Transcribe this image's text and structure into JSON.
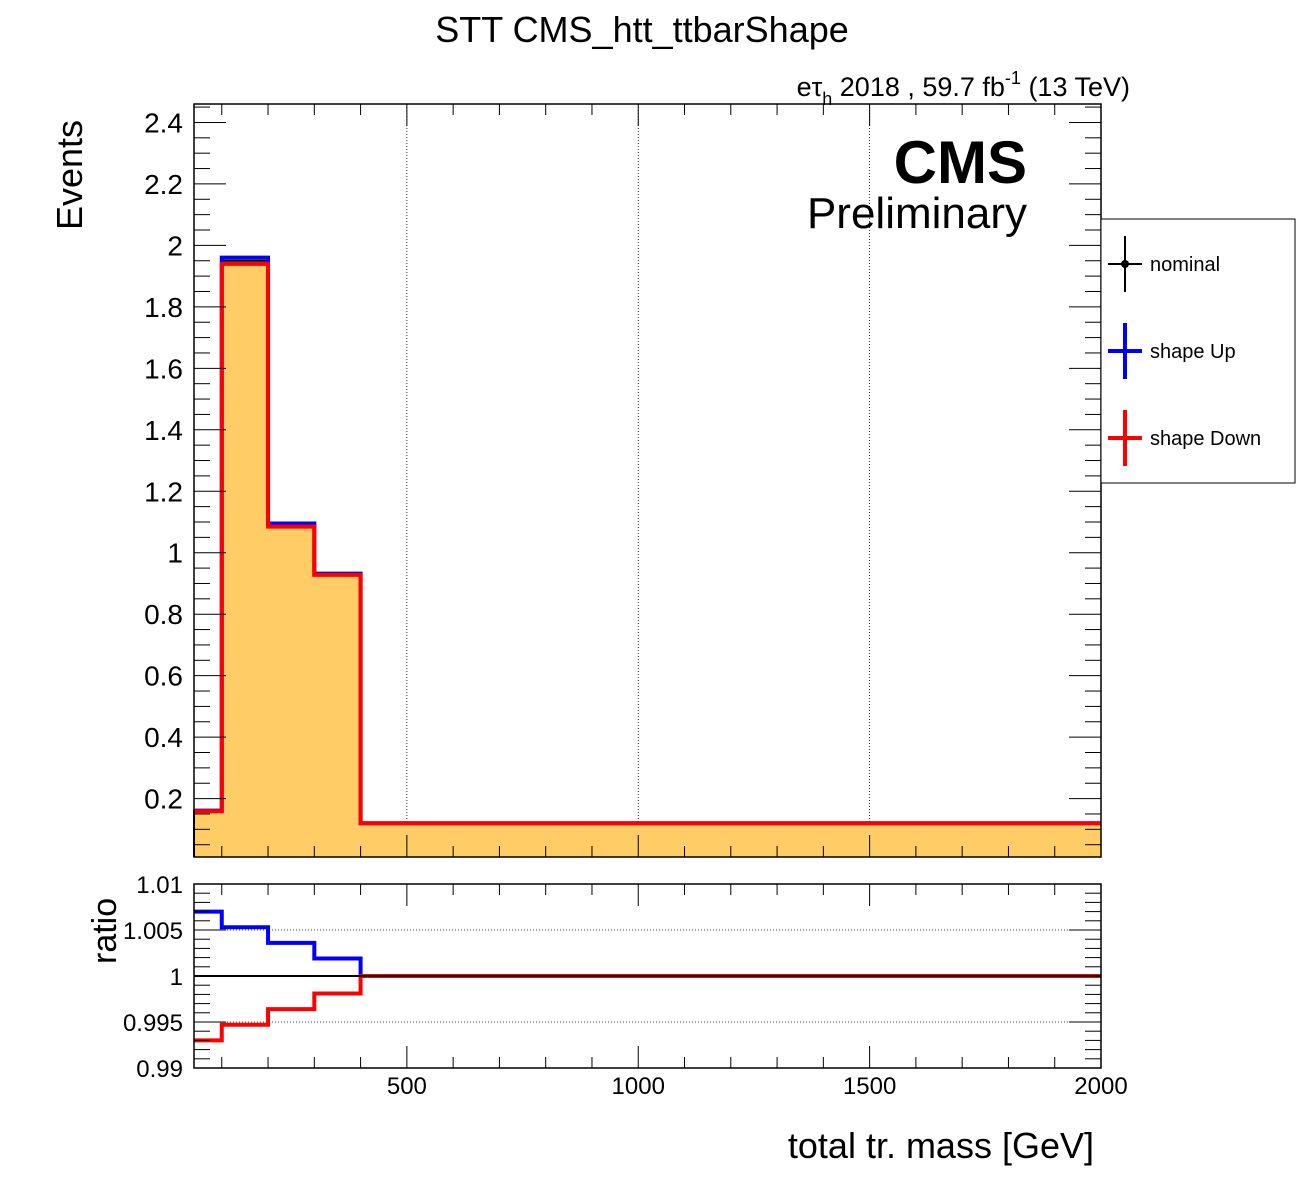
{
  "chart_data": [
    {
      "type": "line",
      "step": true,
      "title": "STT CMS_htt_ttbarShape",
      "subtitle": {
        "prefix": "eτ",
        "subscript": "h",
        "text": " 2018 , 59.7 fb",
        "superscript": "-1",
        "suffix": " (13 TeV)"
      },
      "logo": {
        "main": "CMS",
        "sub": "Preliminary"
      },
      "ylabel": "Events",
      "xlabel": "total tr. mass [GeV]",
      "xlim": [
        40,
        2000
      ],
      "ylim": [
        0.01,
        2.46
      ],
      "yticks": [
        "0.2",
        "0.4",
        "0.6",
        "0.8",
        "1",
        "1.2",
        "1.4",
        "1.6",
        "1.8",
        "2",
        "2.2",
        "2.4"
      ],
      "xticks": [
        "500",
        "1000",
        "1500",
        "2000"
      ],
      "grid": {
        "x": true,
        "y": false
      },
      "bin_edges": [
        40,
        100,
        200,
        300,
        400,
        2000
      ],
      "fill_color": "#ffcc66",
      "series": [
        {
          "name": "nominal",
          "color": "#000000",
          "values": [
            0.16,
            1.95,
            1.09,
            0.93,
            0.12
          ]
        },
        {
          "name": "shape Up",
          "color": "#0000ff",
          "values": [
            0.161,
            1.96,
            1.095,
            0.932,
            0.12
          ]
        },
        {
          "name": "shape Down",
          "color": "#ff0000",
          "values": [
            0.159,
            1.94,
            1.085,
            0.928,
            0.12
          ]
        }
      ],
      "legend": {
        "position": "right",
        "entries": [
          "nominal",
          "shape Up",
          "shape Down"
        ]
      }
    },
    {
      "type": "line",
      "step": true,
      "ylabel": "ratio",
      "xlim": [
        40,
        2000
      ],
      "ylim": [
        0.99,
        1.01
      ],
      "yticks": [
        "0.99",
        "0.995",
        "1",
        "1.005",
        "1.01"
      ],
      "grid": {
        "x": false,
        "y": true
      },
      "bin_edges": [
        40,
        100,
        200,
        300,
        400,
        2000
      ],
      "series": [
        {
          "name": "nominal",
          "color": "#000000",
          "values": [
            1.0,
            1.0,
            1.0,
            1.0,
            1.0
          ]
        },
        {
          "name": "shape Up",
          "color": "#0000ff",
          "values": [
            1.007,
            1.0053,
            1.0036,
            1.0019,
            1.0
          ]
        },
        {
          "name": "shape Down",
          "color": "#ff0000",
          "values": [
            0.993,
            0.9947,
            0.9964,
            0.9981,
            1.0
          ]
        }
      ]
    }
  ]
}
